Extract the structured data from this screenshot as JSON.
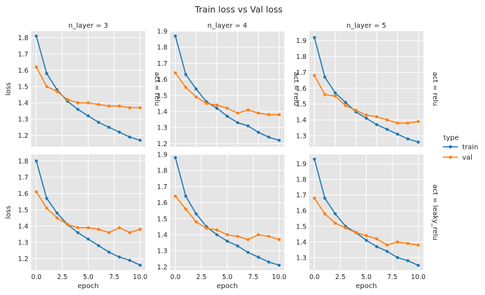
{
  "title": "Train loss vs Val loss",
  "legend": {
    "title": "type",
    "placement": "right",
    "items": [
      {
        "label": "train",
        "color": "#1f77b4"
      },
      {
        "label": "val",
        "color": "#ff7f0e"
      }
    ]
  },
  "chart_data": [
    {
      "type": "line",
      "col_title": "n_layer = 3",
      "row_title": "act = relu",
      "xlabel": "",
      "ylabel": "loss",
      "xlim": [
        -0.5,
        10.5
      ],
      "ylim": [
        1.13,
        1.84
      ],
      "xticks": [
        "0.0",
        "2.5",
        "5.0",
        "7.5",
        "10.0"
      ],
      "yticks": [
        "1.2",
        "1.3",
        "1.4",
        "1.5",
        "1.6",
        "1.7",
        "1.8"
      ],
      "x": [
        0,
        1,
        2,
        3,
        4,
        5,
        6,
        7,
        8,
        9,
        10
      ],
      "series": [
        {
          "name": "train",
          "color": "#1f77b4",
          "values": [
            1.81,
            1.58,
            1.48,
            1.41,
            1.36,
            1.32,
            1.28,
            1.25,
            1.22,
            1.19,
            1.17
          ]
        },
        {
          "name": "val",
          "color": "#ff7f0e",
          "values": [
            1.62,
            1.5,
            1.47,
            1.42,
            1.4,
            1.4,
            1.39,
            1.38,
            1.38,
            1.37,
            1.37
          ]
        }
      ]
    },
    {
      "type": "line",
      "col_title": "n_layer = 4",
      "row_title": "act = relu",
      "xlabel": "",
      "ylabel": "",
      "xlim": [
        -0.5,
        10.5
      ],
      "ylim": [
        1.18,
        1.9
      ],
      "xticks": [
        "0",
        "2",
        "4",
        "6",
        "8",
        "10"
      ],
      "yticks": [
        "1.2",
        "1.3",
        "1.4",
        "1.5",
        "1.6",
        "1.7",
        "1.8",
        "1.9"
      ],
      "x": [
        0,
        1,
        2,
        3,
        4,
        5,
        6,
        7,
        8,
        9,
        10
      ],
      "series": [
        {
          "name": "train",
          "color": "#1f77b4",
          "values": [
            1.87,
            1.63,
            1.54,
            1.46,
            1.42,
            1.37,
            1.33,
            1.31,
            1.27,
            1.24,
            1.22
          ]
        },
        {
          "name": "val",
          "color": "#ff7f0e",
          "values": [
            1.64,
            1.55,
            1.49,
            1.45,
            1.44,
            1.42,
            1.39,
            1.41,
            1.39,
            1.38,
            1.38
          ]
        }
      ]
    },
    {
      "type": "line",
      "col_title": "n_layer = 5",
      "row_title": "act = relu",
      "xlabel": "",
      "ylabel": "",
      "xlim": [
        -0.5,
        10.5
      ],
      "ylim": [
        1.23,
        1.96
      ],
      "xticks": [
        "0",
        "2",
        "4",
        "6",
        "8",
        "10"
      ],
      "yticks": [
        "1.3",
        "1.4",
        "1.5",
        "1.6",
        "1.7",
        "1.8",
        "1.9"
      ],
      "x": [
        0,
        1,
        2,
        3,
        4,
        5,
        6,
        7,
        8,
        9,
        10
      ],
      "series": [
        {
          "name": "train",
          "color": "#1f77b4",
          "values": [
            1.92,
            1.67,
            1.57,
            1.51,
            1.45,
            1.41,
            1.37,
            1.34,
            1.31,
            1.28,
            1.26
          ]
        },
        {
          "name": "val",
          "color": "#ff7f0e",
          "values": [
            1.68,
            1.56,
            1.55,
            1.49,
            1.46,
            1.43,
            1.42,
            1.4,
            1.38,
            1.38,
            1.39
          ]
        }
      ]
    },
    {
      "type": "line",
      "col_title": "",
      "row_title": "",
      "xlabel": "epoch",
      "ylabel": "loss",
      "xlim": [
        -0.5,
        10.5
      ],
      "ylim": [
        1.13,
        1.84
      ],
      "xticks": [
        "0.0",
        "2.5",
        "5.0",
        "7.5",
        "10.0"
      ],
      "yticks": [
        "1.2",
        "1.3",
        "1.4",
        "1.5",
        "1.6",
        "1.7",
        "1.8"
      ],
      "x": [
        0,
        1,
        2,
        3,
        4,
        5,
        6,
        7,
        8,
        9,
        10
      ],
      "series": [
        {
          "name": "train",
          "color": "#1f77b4",
          "values": [
            1.8,
            1.57,
            1.48,
            1.41,
            1.36,
            1.32,
            1.28,
            1.24,
            1.21,
            1.19,
            1.16
          ]
        },
        {
          "name": "val",
          "color": "#ff7f0e",
          "values": [
            1.61,
            1.51,
            1.45,
            1.41,
            1.39,
            1.39,
            1.38,
            1.36,
            1.39,
            1.36,
            1.38
          ]
        }
      ]
    },
    {
      "type": "line",
      "col_title": "",
      "row_title": "",
      "xlabel": "epoch",
      "ylabel": "",
      "xlim": [
        -0.5,
        10.5
      ],
      "ylim": [
        1.18,
        1.9
      ],
      "xticks": [
        "0.0",
        "2.5",
        "5.0",
        "7.5",
        "10.0"
      ],
      "yticks": [
        "1.2",
        "1.3",
        "1.4",
        "1.5",
        "1.6",
        "1.7",
        "1.8",
        "1.9"
      ],
      "x": [
        0,
        1,
        2,
        3,
        4,
        5,
        6,
        7,
        8,
        9,
        10
      ],
      "series": [
        {
          "name": "train",
          "color": "#1f77b4",
          "values": [
            1.88,
            1.64,
            1.53,
            1.45,
            1.4,
            1.36,
            1.33,
            1.29,
            1.26,
            1.23,
            1.21
          ]
        },
        {
          "name": "val",
          "color": "#ff7f0e",
          "values": [
            1.64,
            1.56,
            1.48,
            1.44,
            1.43,
            1.4,
            1.39,
            1.37,
            1.4,
            1.39,
            1.37
          ]
        }
      ]
    },
    {
      "type": "line",
      "col_title": "",
      "row_title": "act = leaky_relu",
      "xlabel": "epoch",
      "ylabel": "",
      "xlim": [
        -0.5,
        10.5
      ],
      "ylim": [
        1.22,
        1.96
      ],
      "xticks": [
        "0.0",
        "2.5",
        "5.0",
        "7.5",
        "10.0"
      ],
      "yticks": [
        "1.3",
        "1.4",
        "1.5",
        "1.6",
        "1.7",
        "1.8",
        "1.9"
      ],
      "x": [
        0,
        1,
        2,
        3,
        4,
        5,
        6,
        7,
        8,
        9,
        10
      ],
      "series": [
        {
          "name": "train",
          "color": "#1f77b4",
          "values": [
            1.93,
            1.68,
            1.58,
            1.5,
            1.46,
            1.41,
            1.37,
            1.34,
            1.3,
            1.28,
            1.25
          ]
        },
        {
          "name": "val",
          "color": "#ff7f0e",
          "values": [
            1.68,
            1.58,
            1.52,
            1.49,
            1.46,
            1.44,
            1.42,
            1.38,
            1.4,
            1.39,
            1.38
          ]
        }
      ]
    }
  ]
}
